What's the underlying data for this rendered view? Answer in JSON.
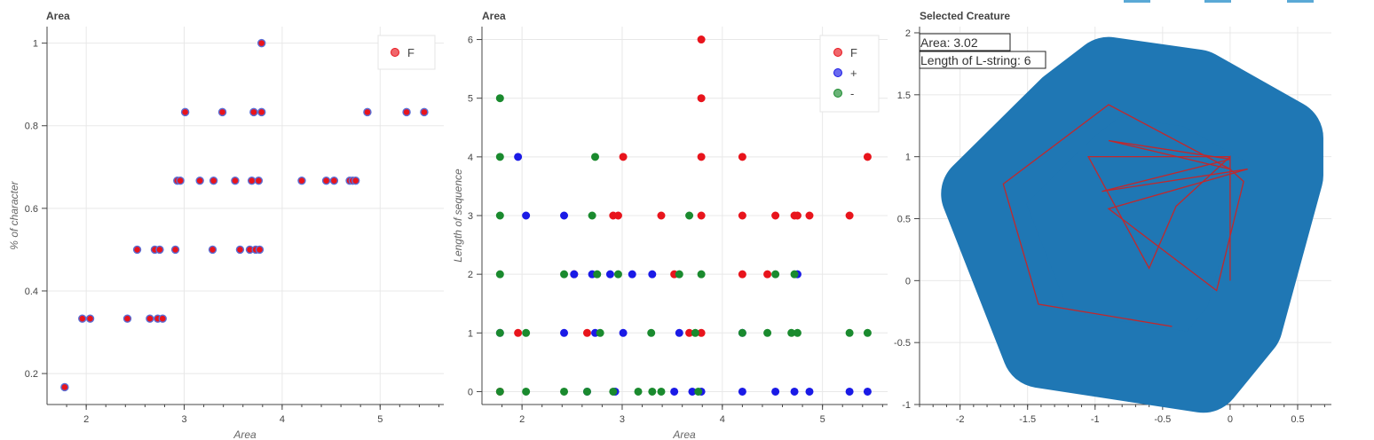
{
  "chart_data": [
    {
      "type": "scatter",
      "title": "Area",
      "xlabel": "Area",
      "ylabel": "% of character",
      "xlim": [
        1.6,
        5.65
      ],
      "ylim": [
        0.125,
        1.04
      ],
      "x_ticks": [
        2,
        3,
        4,
        5
      ],
      "y_ticks": [
        0.2,
        0.4,
        0.6,
        0.8,
        1
      ],
      "y_tick_labels": [
        "0.2",
        "0.4",
        "0.6",
        "0.8",
        "1"
      ],
      "grid": true,
      "legend_position": "top-right",
      "series": [
        {
          "name": "F",
          "color": "#e8141c",
          "outline": "#5b6fd6",
          "x": [
            1.78,
            1.96,
            2.04,
            2.42,
            2.52,
            2.65,
            2.7,
            2.73,
            2.75,
            2.78,
            2.91,
            2.93,
            2.96,
            3.01,
            3.16,
            3.29,
            3.3,
            3.39,
            3.52,
            3.57,
            3.67,
            3.69,
            3.71,
            3.73,
            3.76,
            3.77,
            3.79,
            3.79,
            4.2,
            4.45,
            4.53,
            4.69,
            4.72,
            4.75,
            4.87,
            5.27,
            5.45
          ],
          "y": [
            0.167,
            0.333,
            0.333,
            0.333,
            0.5,
            0.333,
            0.5,
            0.333,
            0.5,
            0.333,
            0.5,
            0.667,
            0.667,
            0.833,
            0.667,
            0.5,
            0.667,
            0.833,
            0.667,
            0.5,
            0.5,
            0.667,
            0.833,
            0.5,
            0.667,
            0.5,
            0.833,
            1.0,
            0.667,
            0.667,
            0.667,
            0.667,
            0.667,
            0.667,
            0.833,
            0.833,
            0.833
          ]
        }
      ]
    },
    {
      "type": "scatter",
      "title": "Area",
      "xlabel": "Area",
      "ylabel": "Length of sequence",
      "xlim": [
        1.6,
        5.65
      ],
      "ylim": [
        -0.22,
        6.22
      ],
      "x_ticks": [
        2,
        3,
        4,
        5
      ],
      "y_ticks": [
        0,
        1,
        2,
        3,
        4,
        5,
        6
      ],
      "grid": true,
      "legend_position": "top-right",
      "series": [
        {
          "name": "F",
          "color": "#e8141c",
          "x": [
            1.78,
            1.96,
            2.52,
            2.65,
            2.91,
            2.96,
            3.01,
            3.39,
            3.52,
            3.67,
            3.79,
            3.79,
            3.79,
            3.79,
            3.79,
            4.2,
            4.2,
            4.2,
            4.45,
            4.53,
            4.72,
            4.75,
            4.87,
            5.27,
            5.45
          ],
          "y": [
            0,
            1,
            2,
            1,
            3,
            3,
            4,
            3,
            2,
            1,
            6,
            5,
            4,
            3,
            1,
            4,
            3,
            2,
            2,
            3,
            3,
            3,
            3,
            3,
            4
          ]
        },
        {
          "name": "+",
          "color": "#1a1ae6",
          "x": [
            1.78,
            1.96,
            2.04,
            2.42,
            2.42,
            2.52,
            2.65,
            2.7,
            2.73,
            2.88,
            2.93,
            3.01,
            3.1,
            3.3,
            3.52,
            3.57,
            3.7,
            3.79,
            4.2,
            4.2,
            4.53,
            4.72,
            4.75,
            4.87,
            5.27,
            5.45
          ],
          "y": [
            1,
            4,
            3,
            3,
            1,
            2,
            0,
            2,
            1,
            2,
            0,
            1,
            2,
            2,
            0,
            1,
            0,
            0,
            0,
            1,
            0,
            0,
            2,
            0,
            0,
            0
          ]
        },
        {
          "name": "-",
          "color": "#1a8a2e",
          "x": [
            1.78,
            1.78,
            1.78,
            1.78,
            1.78,
            2.04,
            2.04,
            2.42,
            2.42,
            2.65,
            2.7,
            2.73,
            2.75,
            2.78,
            2.91,
            2.96,
            3.16,
            3.29,
            3.3,
            3.39,
            3.57,
            3.67,
            3.73,
            3.76,
            3.79,
            4.2,
            4.45,
            4.53,
            4.69,
            4.72,
            4.75,
            5.27,
            5.45
          ],
          "y": [
            0,
            1,
            2,
            3,
            4,
            0,
            1,
            0,
            2,
            0,
            3,
            4,
            2,
            1,
            0,
            2,
            0,
            1,
            0,
            0,
            2,
            3,
            1,
            0,
            2,
            1,
            1,
            2,
            1,
            2,
            1,
            1,
            1
          ]
        }
      ],
      "extra_points": [
        [
          1.78,
          5
        ]
      ]
    },
    {
      "type": "line",
      "title": "Selected Creature",
      "xlim": [
        -2.3,
        0.75
      ],
      "ylim": [
        -1,
        2.05
      ],
      "x_ticks": [
        -2,
        -1.5,
        -1,
        -0.5,
        0,
        0.5
      ],
      "x_tick_labels": [
        "-2",
        "-1.5",
        "-1",
        "-0.5",
        "0",
        "0.5"
      ],
      "y_ticks": [
        -1,
        -0.5,
        0,
        0.5,
        1,
        1.5,
        2
      ],
      "y_tick_labels": [
        "-1",
        "-0.5",
        "0",
        "0.5",
        "1",
        "1.5",
        "2"
      ],
      "grid": true,
      "annotations": [
        "Area: 3.02",
        "Length of L-string: 6"
      ],
      "fill_color": "#1f77b4",
      "line_color": "#c0282d",
      "hull": [
        [
          0.4,
          0.85
        ],
        [
          0.1,
          -0.35
        ],
        [
          -0.2,
          -0.75
        ],
        [
          -1.4,
          -0.55
        ],
        [
          -1.85,
          0.7
        ],
        [
          -1.2,
          1.4
        ],
        [
          -0.9,
          1.65
        ],
        [
          -0.25,
          1.55
        ],
        [
          0.4,
          1.15
        ]
      ],
      "hull_stroke": 34,
      "path": [
        [
          0,
          0
        ],
        [
          0,
          1
        ],
        [
          -1.05,
          1
        ],
        [
          -0.6,
          0.1
        ],
        [
          -0.4,
          0.6
        ],
        [
          0,
          1
        ],
        [
          0,
          0.9
        ],
        [
          0.1,
          0.8
        ],
        [
          -0.1,
          -0.08
        ],
        [
          -0.9,
          0.58
        ],
        [
          0.13,
          0.9
        ],
        [
          -0.95,
          0.72
        ],
        [
          0,
          0.98
        ],
        [
          -0.9,
          1.13
        ],
        [
          0,
          0.9
        ],
        [
          -0.9,
          1.42
        ],
        [
          -1.68,
          0.78
        ],
        [
          -1.42,
          -0.19
        ],
        [
          -0.43,
          -0.37
        ]
      ]
    }
  ]
}
